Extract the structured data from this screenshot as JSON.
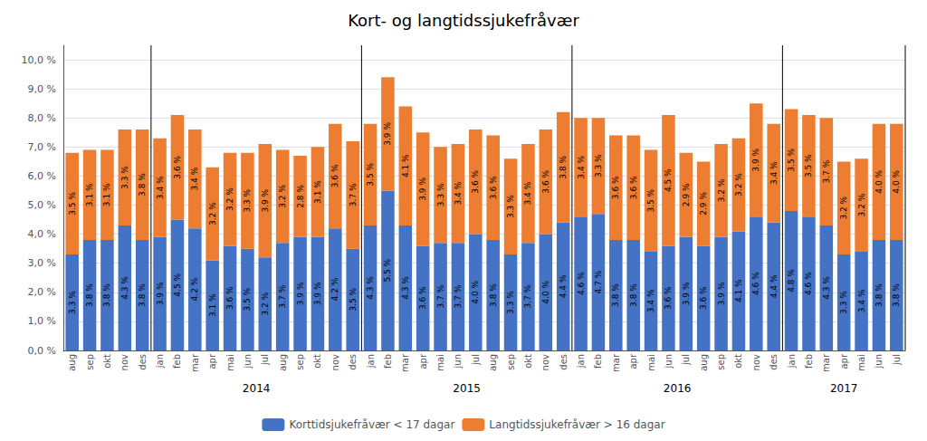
{
  "chart_data": {
    "type": "bar",
    "title": "Kort- og langtidssjukefråvær",
    "categories": [
      "aug",
      "sep",
      "okt",
      "nov",
      "des",
      "jan",
      "feb",
      "mar",
      "apr",
      "mai",
      "jun",
      "jul",
      "aug",
      "sep",
      "okt",
      "nov",
      "des",
      "jan",
      "feb",
      "mar",
      "apr",
      "mai",
      "jun",
      "jul",
      "aug",
      "sep",
      "okt",
      "nov",
      "des",
      "jan",
      "feb",
      "mar",
      "apr",
      "mai",
      "jun",
      "jul",
      "aug",
      "sep",
      "okt",
      "nov",
      "des",
      "jan",
      "feb",
      "mar",
      "apr",
      "mai",
      "jun",
      "jul"
    ],
    "series": [
      {
        "name": "Korttidsjukefråvær < 17 dagar",
        "color": "#4472C4",
        "values": [
          3.3,
          3.8,
          3.8,
          4.3,
          3.8,
          3.9,
          4.5,
          4.2,
          3.1,
          3.6,
          3.5,
          3.2,
          3.7,
          3.9,
          3.9,
          4.2,
          3.5,
          4.3,
          5.5,
          4.3,
          3.6,
          3.7,
          3.7,
          4.0,
          3.8,
          3.3,
          3.7,
          4.0,
          4.4,
          4.6,
          4.7,
          3.8,
          3.8,
          3.4,
          3.6,
          3.9,
          3.6,
          3.9,
          4.1,
          4.6,
          4.4,
          4.8,
          4.6,
          4.3,
          3.3,
          3.4,
          3.8,
          3.8
        ],
        "value_labels": [
          "3.3 %",
          "3.8 %",
          "3.8 %",
          "4.3 %",
          "3.8 %",
          "3.9 %",
          "4.5 %",
          "4.2 %",
          "3.1 %",
          "3.6 %",
          "3.5 %",
          "3.2 %",
          "3.7 %",
          "3.9 %",
          "3.9 %",
          "4.2 %",
          "3.5 %",
          "4.3 %",
          "5.5 %",
          "4.3 %",
          "3.6 %",
          "3.7 %",
          "3.7 %",
          "4.0 %",
          "3.8 %",
          "3.3 %",
          "3.7 %",
          "4.0 %",
          "4.4 %",
          "4.6 %",
          "4.7 %",
          "3.8 %",
          "3.8 %",
          "3.4 %",
          "3.6 %",
          "3.9 %",
          "3.6 %",
          "3.9 %",
          "4.1 %",
          "4.6 %",
          "4.4 %",
          "4.8 %",
          "4.6 %",
          "4.3 %",
          "3.3 %",
          "3.4 %",
          "3.8 %",
          "3.8 %"
        ]
      },
      {
        "name": "Langtidssjukefråvær > 16 dagar",
        "color": "#ED7D31",
        "values": [
          3.5,
          3.1,
          3.1,
          3.3,
          3.8,
          3.4,
          3.6,
          3.4,
          3.2,
          3.2,
          3.3,
          3.9,
          3.2,
          2.8,
          3.1,
          3.6,
          3.7,
          3.5,
          3.9,
          4.1,
          3.9,
          3.3,
          3.4,
          3.6,
          3.6,
          3.3,
          3.4,
          3.6,
          3.8,
          3.4,
          3.3,
          3.6,
          3.6,
          3.5,
          4.5,
          2.9,
          2.9,
          3.2,
          3.2,
          3.9,
          3.4,
          3.5,
          3.5,
          3.7,
          3.2,
          3.2,
          4.0,
          4.0
        ],
        "value_labels": [
          "3.5 %",
          "3.1 %",
          "3.1 %",
          "3.3 %",
          "3.8 %",
          "3.4 %",
          "3.6 %",
          "3.4 %",
          "3.2 %",
          "3.2 %",
          "3.3 %",
          "3.9 %",
          "3.2 %",
          "2.8 %",
          "3.1 %",
          "3.6 %",
          "3.7 %",
          "3.5 %",
          "3.9 %",
          "4.1 %",
          "3.9 %",
          "3.3 %",
          "3.4 %",
          "3.6 %",
          "3.6 %",
          "3.3 %",
          "3.4 %",
          "3.6 %",
          "3.8 %",
          "3.4 %",
          "3.3 %",
          "3.6 %",
          "3.6 %",
          "3.5 %",
          "4.5 %",
          "2.9 %",
          "2.9 %",
          "3.2 %",
          "3.2 %",
          "3.9 %",
          "3.4 %",
          "3.5 %",
          "3.5 %",
          "3.7 %",
          "3.2 %",
          "3.2 %",
          "4.0 %",
          "4.0 %"
        ]
      }
    ],
    "stacked": true,
    "data_labels": true,
    "ylim": [
      0,
      10.5
    ],
    "yticks": [
      {
        "value": 0,
        "label": "0,0 %"
      },
      {
        "value": 1,
        "label": "1,0 %"
      },
      {
        "value": 2,
        "label": "2,0 %"
      },
      {
        "value": 3,
        "label": "3,0 %"
      },
      {
        "value": 4,
        "label": "4,0 %"
      },
      {
        "value": 5,
        "label": "5,0 %"
      },
      {
        "value": 6,
        "label": "6,0 %"
      },
      {
        "value": 7,
        "label": "7,0 %"
      },
      {
        "value": 8,
        "label": "8,0 %"
      },
      {
        "value": 9,
        "label": "9,0 %"
      },
      {
        "value": 10,
        "label": "10,0 %"
      }
    ],
    "grid": true,
    "legend": "bottom",
    "annotations": [
      {
        "text": "2014",
        "start": 5,
        "end": 17
      },
      {
        "text": "2015",
        "start": 17,
        "end": 29
      },
      {
        "text": "2016",
        "start": 29,
        "end": 41
      },
      {
        "text": "2017",
        "start": 41,
        "end": 48
      }
    ]
  }
}
